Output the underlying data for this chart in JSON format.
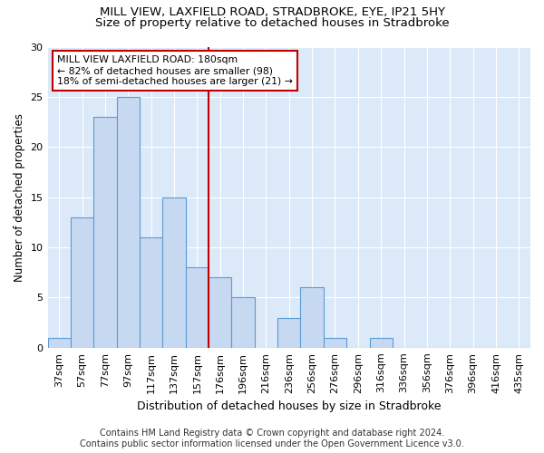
{
  "title1": "MILL VIEW, LAXFIELD ROAD, STRADBROKE, EYE, IP21 5HY",
  "title2": "Size of property relative to detached houses in Stradbroke",
  "xlabel": "Distribution of detached houses by size in Stradbroke",
  "ylabel": "Number of detached properties",
  "footnote1": "Contains HM Land Registry data © Crown copyright and database right 2024.",
  "footnote2": "Contains public sector information licensed under the Open Government Licence v3.0.",
  "bar_labels": [
    "37sqm",
    "57sqm",
    "77sqm",
    "97sqm",
    "117sqm",
    "137sqm",
    "157sqm",
    "176sqm",
    "196sqm",
    "216sqm",
    "236sqm",
    "256sqm",
    "276sqm",
    "296sqm",
    "316sqm",
    "336sqm",
    "356sqm",
    "376sqm",
    "396sqm",
    "416sqm",
    "435sqm"
  ],
  "bar_values": [
    1,
    13,
    23,
    25,
    11,
    15,
    8,
    7,
    5,
    0,
    3,
    6,
    1,
    0,
    1,
    0,
    0,
    0,
    0,
    0,
    0
  ],
  "bar_color": "#c6d9f0",
  "bar_edge_color": "#5b9bd5",
  "vline_index": 7,
  "vline_color": "#c00000",
  "annotation_text": "MILL VIEW LAXFIELD ROAD: 180sqm\n← 82% of detached houses are smaller (98)\n18% of semi-detached houses are larger (21) →",
  "annotation_box_color": "#ffffff",
  "annotation_box_edge": "#c00000",
  "ylim": [
    0,
    30
  ],
  "yticks": [
    0,
    5,
    10,
    15,
    20,
    25,
    30
  ],
  "bg_color": "#dce9f8",
  "grid_color": "#ffffff",
  "title1_fontsize": 9.5,
  "title2_fontsize": 9.5,
  "xlabel_fontsize": 9,
  "ylabel_fontsize": 8.5,
  "tick_fontsize": 8,
  "footnote_fontsize": 7
}
